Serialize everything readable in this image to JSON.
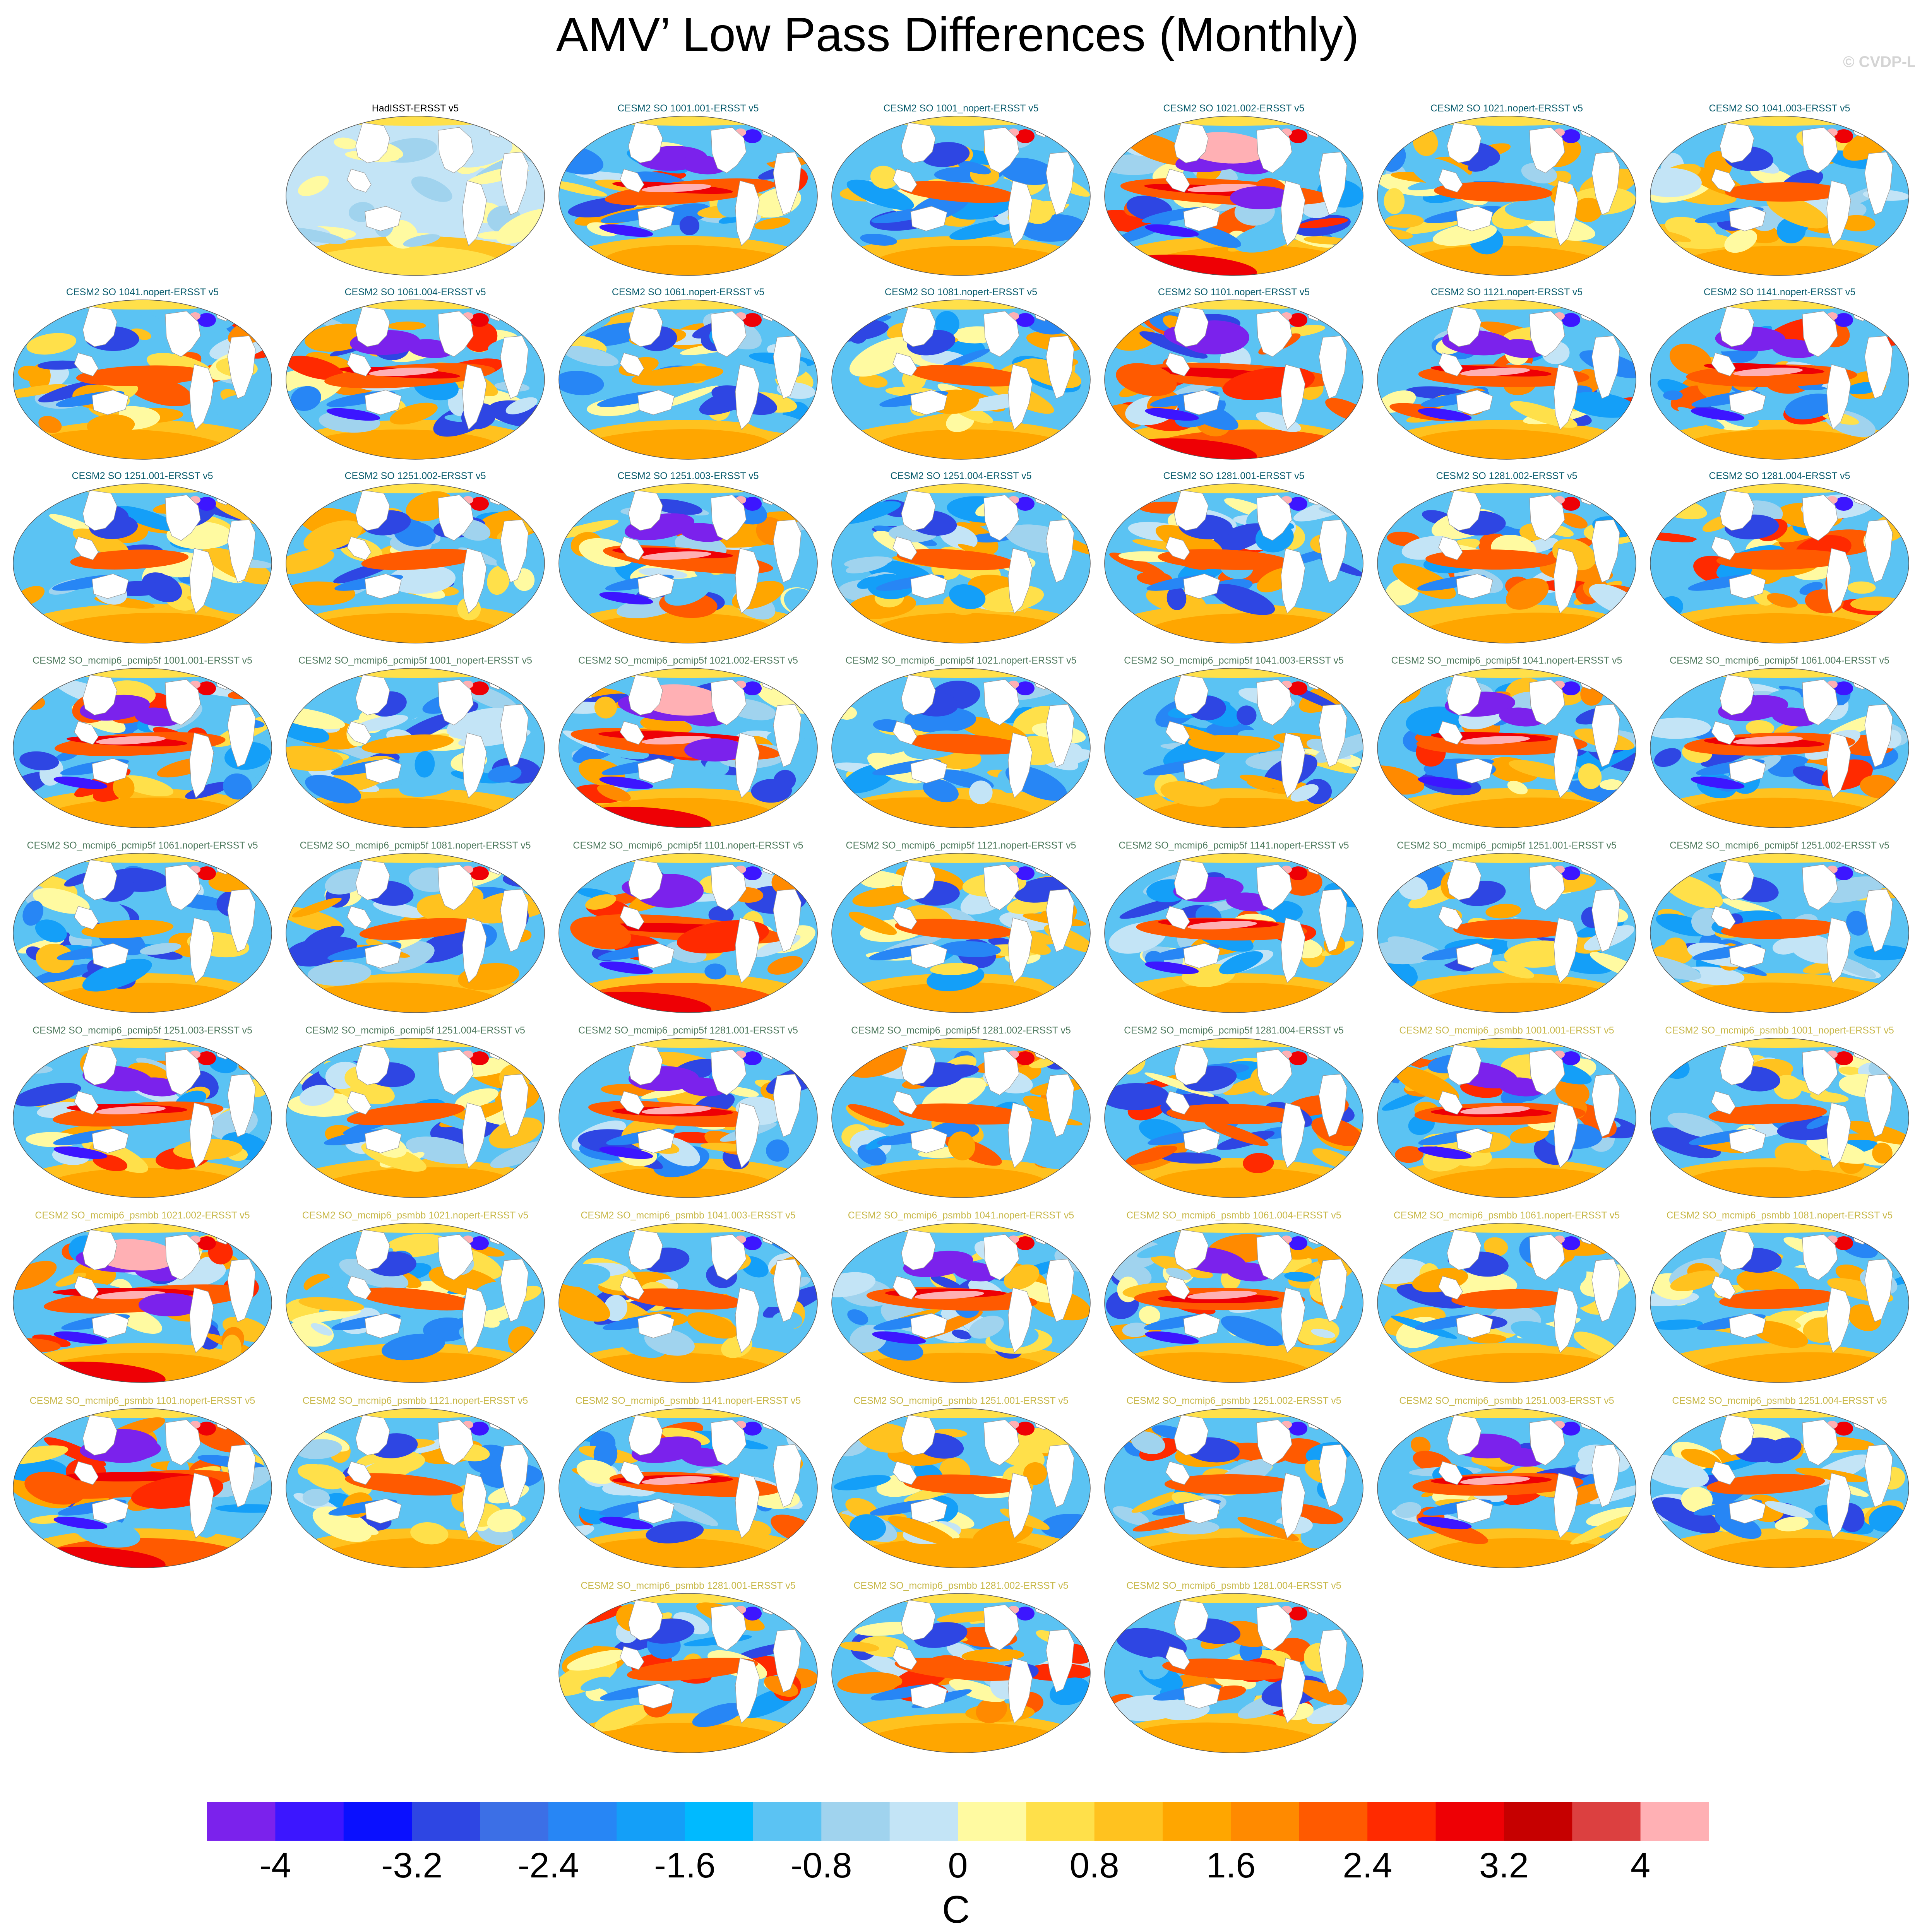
{
  "title": "AMV’ Low Pass Differences (Monthly)",
  "credit": "© CVDP-LE",
  "label_colors": {
    "observed": "#000000",
    "so": "#0b5d6e",
    "pcmip5f": "#4f7a5e",
    "psmbb": "#c8b84a"
  },
  "panels": [
    {
      "label": "HadISST-ERSST v5",
      "group": "observed",
      "pattern": "weak"
    },
    {
      "label": "CESM2 SO 1001.001-ERSST v5",
      "group": "so",
      "pattern": "strong"
    },
    {
      "label": "CESM2 SO 1001_nopert-ERSST v5",
      "group": "so",
      "pattern": "mixed"
    },
    {
      "label": "CESM2 SO 1021.002-ERSST v5",
      "group": "so",
      "pattern": "extreme"
    },
    {
      "label": "CESM2 SO 1021.nopert-ERSST v5",
      "group": "so",
      "pattern": "mixed"
    },
    {
      "label": "CESM2 SO 1041.003-ERSST v5",
      "group": "so",
      "pattern": "mixed"
    },
    {
      "label": "CESM2 SO 1041.nopert-ERSST v5",
      "group": "so",
      "pattern": "warm"
    },
    {
      "label": "CESM2 SO 1061.004-ERSST v5",
      "group": "so",
      "pattern": "strong"
    },
    {
      "label": "CESM2 SO 1061.nopert-ERSST v5",
      "group": "so",
      "pattern": "cool"
    },
    {
      "label": "CESM2 SO 1081.nopert-ERSST v5",
      "group": "so",
      "pattern": "mixed"
    },
    {
      "label": "CESM2 SO 1101.nopert-ERSST v5",
      "group": "so",
      "pattern": "hot"
    },
    {
      "label": "CESM2 SO 1121.nopert-ERSST v5",
      "group": "so",
      "pattern": "strong"
    },
    {
      "label": "CESM2 SO 1141.nopert-ERSST v5",
      "group": "so",
      "pattern": "strong"
    },
    {
      "label": "CESM2 SO 1251.001-ERSST v5",
      "group": "so",
      "pattern": "mixed"
    },
    {
      "label": "CESM2 SO 1251.002-ERSST v5",
      "group": "so",
      "pattern": "mixed"
    },
    {
      "label": "CESM2 SO 1251.003-ERSST v5",
      "group": "so",
      "pattern": "strong"
    },
    {
      "label": "CESM2 SO 1251.004-ERSST v5",
      "group": "so",
      "pattern": "mixed"
    },
    {
      "label": "CESM2 SO 1281.001-ERSST v5",
      "group": "so",
      "pattern": "warm"
    },
    {
      "label": "CESM2 SO 1281.002-ERSST v5",
      "group": "so",
      "pattern": "warm"
    },
    {
      "label": "CESM2 SO 1281.004-ERSST v5",
      "group": "so",
      "pattern": "warm"
    },
    {
      "label": "CESM2 SO_mcmip6_pcmip5f 1001.001-ERSST v5",
      "group": "pcmip5f",
      "pattern": "strong"
    },
    {
      "label": "CESM2 SO_mcmip6_pcmip5f 1001_nopert-ERSST v5",
      "group": "pcmip5f",
      "pattern": "cool"
    },
    {
      "label": "CESM2 SO_mcmip6_pcmip5f 1021.002-ERSST v5",
      "group": "pcmip5f",
      "pattern": "extreme"
    },
    {
      "label": "CESM2 SO_mcmip6_pcmip5f 1021.nopert-ERSST v5",
      "group": "pcmip5f",
      "pattern": "mixed"
    },
    {
      "label": "CESM2 SO_mcmip6_pcmip5f 1041.003-ERSST v5",
      "group": "pcmip5f",
      "pattern": "cool"
    },
    {
      "label": "CESM2 SO_mcmip6_pcmip5f 1041.nopert-ERSST v5",
      "group": "pcmip5f",
      "pattern": "strong"
    },
    {
      "label": "CESM2 SO_mcmip6_pcmip5f 1061.004-ERSST v5",
      "group": "pcmip5f",
      "pattern": "strong"
    },
    {
      "label": "CESM2 SO_mcmip6_pcmip5f 1061.nopert-ERSST v5",
      "group": "pcmip5f",
      "pattern": "cool"
    },
    {
      "label": "CESM2 SO_mcmip6_pcmip5f 1081.nopert-ERSST v5",
      "group": "pcmip5f",
      "pattern": "mixed"
    },
    {
      "label": "CESM2 SO_mcmip6_pcmip5f 1101.nopert-ERSST v5",
      "group": "pcmip5f",
      "pattern": "hot"
    },
    {
      "label": "CESM2 SO_mcmip6_pcmip5f 1121.nopert-ERSST v5",
      "group": "pcmip5f",
      "pattern": "mixed"
    },
    {
      "label": "CESM2 SO_mcmip6_pcmip5f 1141.nopert-ERSST v5",
      "group": "pcmip5f",
      "pattern": "strong"
    },
    {
      "label": "CESM2 SO_mcmip6_pcmip5f 1251.001-ERSST v5",
      "group": "pcmip5f",
      "pattern": "mixed"
    },
    {
      "label": "CESM2 SO_mcmip6_pcmip5f 1251.002-ERSST v5",
      "group": "pcmip5f",
      "pattern": "mixed"
    },
    {
      "label": "CESM2 SO_mcmip6_pcmip5f 1251.003-ERSST v5",
      "group": "pcmip5f",
      "pattern": "strong"
    },
    {
      "label": "CESM2 SO_mcmip6_pcmip5f 1251.004-ERSST v5",
      "group": "pcmip5f",
      "pattern": "mixed"
    },
    {
      "label": "CESM2 SO_mcmip6_pcmip5f 1281.001-ERSST v5",
      "group": "pcmip5f",
      "pattern": "strong"
    },
    {
      "label": "CESM2 SO_mcmip6_pcmip5f 1281.002-ERSST v5",
      "group": "pcmip5f",
      "pattern": "warm"
    },
    {
      "label": "CESM2 SO_mcmip6_pcmip5f 1281.004-ERSST v5",
      "group": "pcmip5f",
      "pattern": "warm"
    },
    {
      "label": "CESM2 SO_mcmip6_psmbb 1001.001-ERSST v5",
      "group": "psmbb",
      "pattern": "strong"
    },
    {
      "label": "CESM2 SO_mcmip6_psmbb 1001_nopert-ERSST v5",
      "group": "psmbb",
      "pattern": "mixed"
    },
    {
      "label": "CESM2 SO_mcmip6_psmbb 1021.002-ERSST v5",
      "group": "psmbb",
      "pattern": "extreme"
    },
    {
      "label": "CESM2 SO_mcmip6_psmbb 1021.nopert-ERSST v5",
      "group": "psmbb",
      "pattern": "mixed"
    },
    {
      "label": "CESM2 SO_mcmip6_psmbb 1041.003-ERSST v5",
      "group": "psmbb",
      "pattern": "mixed"
    },
    {
      "label": "CESM2 SO_mcmip6_psmbb 1041.nopert-ERSST v5",
      "group": "psmbb",
      "pattern": "strong"
    },
    {
      "label": "CESM2 SO_mcmip6_psmbb 1061.004-ERSST v5",
      "group": "psmbb",
      "pattern": "strong"
    },
    {
      "label": "CESM2 SO_mcmip6_psmbb 1061.nopert-ERSST v5",
      "group": "psmbb",
      "pattern": "mixed"
    },
    {
      "label": "CESM2 SO_mcmip6_psmbb 1081.nopert-ERSST v5",
      "group": "psmbb",
      "pattern": "mixed"
    },
    {
      "label": "CESM2 SO_mcmip6_psmbb 1101.nopert-ERSST v5",
      "group": "psmbb",
      "pattern": "hot"
    },
    {
      "label": "CESM2 SO_mcmip6_psmbb 1121.nopert-ERSST v5",
      "group": "psmbb",
      "pattern": "mixed"
    },
    {
      "label": "CESM2 SO_mcmip6_psmbb 1141.nopert-ERSST v5",
      "group": "psmbb",
      "pattern": "strong"
    },
    {
      "label": "CESM2 SO_mcmip6_psmbb 1251.001-ERSST v5",
      "group": "psmbb",
      "pattern": "mixed"
    },
    {
      "label": "CESM2 SO_mcmip6_psmbb 1251.002-ERSST v5",
      "group": "psmbb",
      "pattern": "warm"
    },
    {
      "label": "CESM2 SO_mcmip6_psmbb 1251.003-ERSST v5",
      "group": "psmbb",
      "pattern": "strong"
    },
    {
      "label": "CESM2 SO_mcmip6_psmbb 1251.004-ERSST v5",
      "group": "psmbb",
      "pattern": "mixed"
    },
    {
      "label": "CESM2 SO_mcmip6_psmbb 1281.001-ERSST v5",
      "group": "psmbb",
      "pattern": "warm"
    },
    {
      "label": "CESM2 SO_mcmip6_psmbb 1281.002-ERSST v5",
      "group": "psmbb",
      "pattern": "warm"
    },
    {
      "label": "CESM2 SO_mcmip6_psmbb 1281.004-ERSST v5",
      "group": "psmbb",
      "pattern": "warm"
    }
  ],
  "colorbar": {
    "units": "C",
    "tick_labels": [
      "-4",
      "-3.2",
      "-2.4",
      "-1.6",
      "-0.8",
      "0",
      "0.8",
      "1.6",
      "2.4",
      "3.2",
      "4"
    ],
    "colors": [
      "#7b22ec",
      "#3c16ff",
      "#0a10ff",
      "#2e46e3",
      "#3c6fe6",
      "#2786f5",
      "#149ff8",
      "#00baff",
      "#5bc3f3",
      "#a0d3ee",
      "#c3e4f6",
      "#fffaa1",
      "#ffe04a",
      "#ffc21f",
      "#ffa600",
      "#ff8a00",
      "#ff5a00",
      "#ff2a00",
      "#ee0005",
      "#c60000",
      "#dc4040",
      "#ffb0b4"
    ]
  }
}
